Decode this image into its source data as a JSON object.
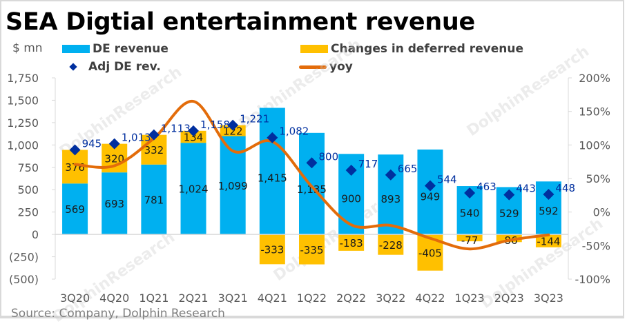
{
  "title": "SEA Digtial entertainment revenue",
  "unit_label": "$ mn",
  "source": "Source: Company, Dolphin Research",
  "watermark": "DolphinResearch",
  "colors": {
    "de_revenue": "#00b0f0",
    "deferred": "#ffc000",
    "adj": "#002f9f",
    "yoy": "#e36c0a"
  },
  "legend": [
    {
      "key": "de_revenue",
      "label": "DE revenue",
      "kind": "bar"
    },
    {
      "key": "deferred",
      "label": "Changes in deferred revenue",
      "kind": "bar"
    },
    {
      "key": "adj",
      "label": "Adj DE rev.",
      "kind": "diamond"
    },
    {
      "key": "yoy",
      "label": "yoy",
      "kind": "line"
    }
  ],
  "chart_data": {
    "type": "bar",
    "title": "SEA Digtial entertainment revenue",
    "xlabel": "",
    "ylabel": "$ mn",
    "categories": [
      "3Q20",
      "4Q20",
      "1Q21",
      "2Q21",
      "3Q21",
      "4Q21",
      "1Q22",
      "2Q22",
      "3Q22",
      "4Q22",
      "1Q23",
      "2Q23",
      "3Q23"
    ],
    "series": [
      {
        "name": "DE revenue",
        "type": "stacked-bar",
        "axis": "left",
        "values": [
          569,
          693,
          781,
          1024,
          1099,
          1415,
          1135,
          900,
          893,
          949,
          540,
          529,
          592
        ]
      },
      {
        "name": "Changes in deferred revenue",
        "type": "stacked-bar",
        "axis": "left",
        "values": [
          376,
          320,
          332,
          134,
          122,
          -333,
          -335,
          -183,
          -228,
          -405,
          -77,
          -86,
          -144
        ]
      },
      {
        "name": "Adj DE rev.",
        "type": "scatter-diamond",
        "axis": "left",
        "values": [
          945,
          1013,
          1113,
          1158,
          1221,
          1082,
          800,
          717,
          665,
          544,
          463,
          443,
          448
        ]
      },
      {
        "name": "yoy",
        "type": "line",
        "axis": "right",
        "unit": "%",
        "values": [
          71,
          69,
          110,
          165,
          91,
          105,
          38,
          -19,
          -20,
          -39,
          -55,
          -42,
          -34
        ]
      }
    ],
    "left_axis": {
      "range": [
        -500,
        1750
      ],
      "step": 250,
      "ticks": [
        "(500)",
        "(250)",
        "0",
        "250",
        "500",
        "750",
        "1,000",
        "1,250",
        "1,500",
        "1,750"
      ]
    },
    "right_axis": {
      "range": [
        -100,
        200
      ],
      "step": 50,
      "ticks": [
        "-100%",
        "-50%",
        "0%",
        "50%",
        "100%",
        "150%",
        "200%"
      ]
    },
    "legend_position": "top",
    "grid": false
  }
}
